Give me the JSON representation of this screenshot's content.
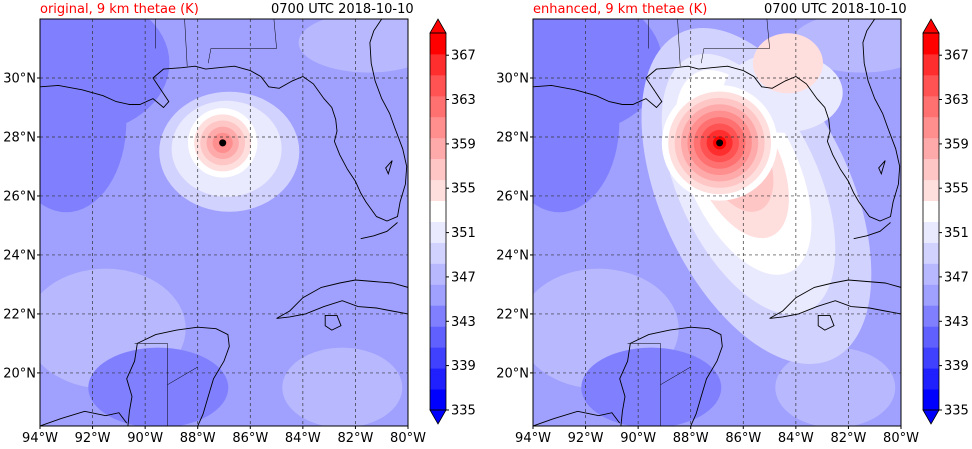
{
  "panels": [
    {
      "title": "original, 9 km thetae (K)",
      "time": "0700 UTC 2018-10-10",
      "storm_center": {
        "lon": -87.05,
        "lat": 27.8
      },
      "fields": {
        "core_max": 363,
        "inner_radius_deg": 0.6,
        "outer_radius_deg": 2.4,
        "plume": false
      }
    },
    {
      "title": "enhanced, 9 km thetae (K)",
      "time": "0700 UTC 2018-10-10",
      "storm_center": {
        "lon": -86.9,
        "lat": 27.8
      },
      "fields": {
        "core_max": 369,
        "inner_radius_deg": 1.0,
        "outer_radius_deg": 4.0,
        "plume": true
      }
    }
  ],
  "axes": {
    "lon_range": [
      -94,
      -80
    ],
    "lat_range": [
      18.2,
      32
    ],
    "lon_ticks": [
      -94,
      -92,
      -90,
      -88,
      -86,
      -84,
      -82,
      -80
    ],
    "lon_labels": [
      "94°W",
      "92°W",
      "90°W",
      "88°W",
      "86°W",
      "84°W",
      "82°W",
      "80°W"
    ],
    "lat_ticks": [
      20,
      22,
      24,
      26,
      28,
      30
    ],
    "lat_labels": [
      "20°N",
      "22°N",
      "24°N",
      "26°N",
      "28°N",
      "30°N"
    ]
  },
  "colorbar": {
    "levels": [
      335,
      337,
      339,
      341,
      343,
      345,
      347,
      349,
      351,
      353,
      355,
      357,
      359,
      361,
      363,
      365,
      367,
      369
    ],
    "labels": [
      "335",
      "339",
      "343",
      "347",
      "351",
      "355",
      "359",
      "363",
      "367"
    ],
    "label_values": [
      335,
      339,
      343,
      347,
      351,
      355,
      359,
      363,
      367
    ],
    "colors": [
      "#0000ff",
      "#2020ff",
      "#4040ff",
      "#6060ff",
      "#8080ff",
      "#a0a0ff",
      "#b8b8ff",
      "#d2d2ff",
      "#eaeaff",
      "#ffffff",
      "#ffdede",
      "#ffc6c6",
      "#ffaaaa",
      "#ff8e8e",
      "#ff7070",
      "#ff5252",
      "#ff2e2e",
      "#ff0000"
    ]
  }
}
